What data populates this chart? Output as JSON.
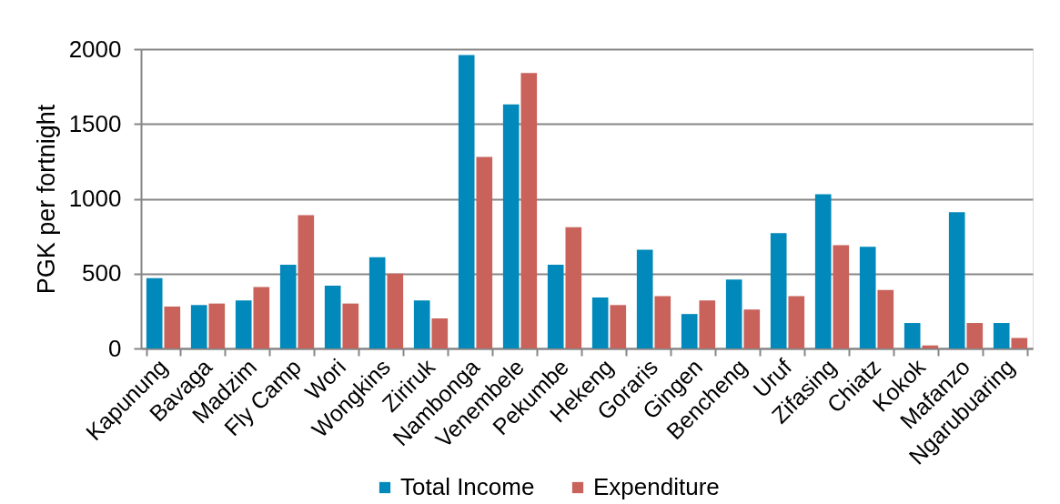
{
  "chart_data": {
    "type": "bar",
    "ylabel": "PGK per fortnight",
    "categories": [
      "Kapunung",
      "Bavaga",
      "Madzim",
      "Fly Camp",
      "Wori",
      "Wongkins",
      "Ziriruk",
      "Nambonga",
      "Venembele",
      "Pekumbe",
      "Hekeng",
      "Goraris",
      "Gingen",
      "Bencheng",
      "Uruf",
      "Zifasing",
      "Chiatz",
      "Kokok",
      "Mafanzo",
      "Ngarubuaring"
    ],
    "series": [
      {
        "name": "Total Income",
        "color": "#0089ba",
        "values": [
          470,
          290,
          320,
          560,
          420,
          610,
          320,
          1960,
          1630,
          560,
          340,
          660,
          230,
          460,
          770,
          1030,
          680,
          170,
          910,
          170
        ]
      },
      {
        "name": "Expenditure",
        "color": "#c8625a",
        "values": [
          280,
          300,
          410,
          890,
          300,
          500,
          200,
          1280,
          1840,
          810,
          290,
          350,
          320,
          260,
          350,
          690,
          390,
          20,
          170,
          70
        ]
      }
    ],
    "ylim": [
      0,
      2000
    ],
    "yticks": [
      0,
      500,
      1000,
      1500,
      2000
    ],
    "grid": "y",
    "legend": "bottom"
  }
}
